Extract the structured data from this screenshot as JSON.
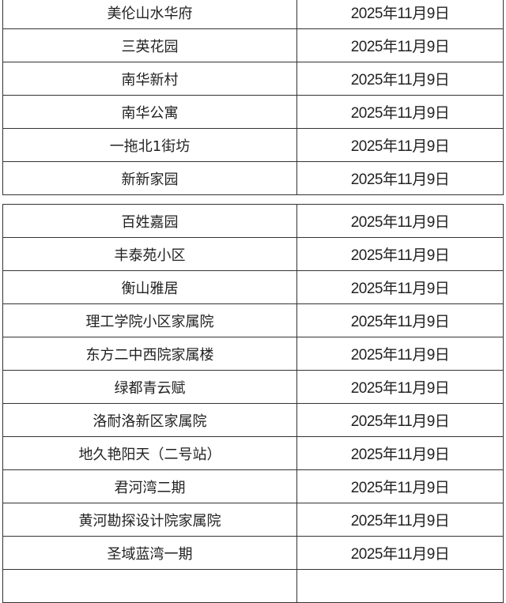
{
  "table_top": {
    "rows": [
      {
        "name": "美伦山水华府",
        "date": "2025年11月9日"
      },
      {
        "name": "三英花园",
        "date": "2025年11月9日"
      },
      {
        "name": "南华新村",
        "date": "2025年11月9日"
      },
      {
        "name": "南华公寓",
        "date": "2025年11月9日"
      },
      {
        "name": "一拖北1街坊",
        "date": "2025年11月9日"
      },
      {
        "name": "新新家园",
        "date": "2025年11月9日"
      }
    ]
  },
  "table_bottom": {
    "rows": [
      {
        "name": "百姓嘉园",
        "date": "2025年11月9日"
      },
      {
        "name": "丰泰苑小区",
        "date": "2025年11月9日"
      },
      {
        "name": "衡山雅居",
        "date": "2025年11月9日"
      },
      {
        "name": "理工学院小区家属院",
        "date": "2025年11月9日"
      },
      {
        "name": "东方二中西院家属楼",
        "date": "2025年11月9日"
      },
      {
        "name": "绿都青云赋",
        "date": "2025年11月9日"
      },
      {
        "name": "洛耐洛新区家属院",
        "date": "2025年11月9日"
      },
      {
        "name": "地久艳阳天（二号站）",
        "date": "2025年11月9日"
      },
      {
        "name": "君河湾二期",
        "date": "2025年11月9日"
      },
      {
        "name": "黄河勘探设计院家属院",
        "date": "2025年11月9日"
      },
      {
        "name": "圣域蓝湾一期",
        "date": "2025年11月9日"
      }
    ]
  }
}
